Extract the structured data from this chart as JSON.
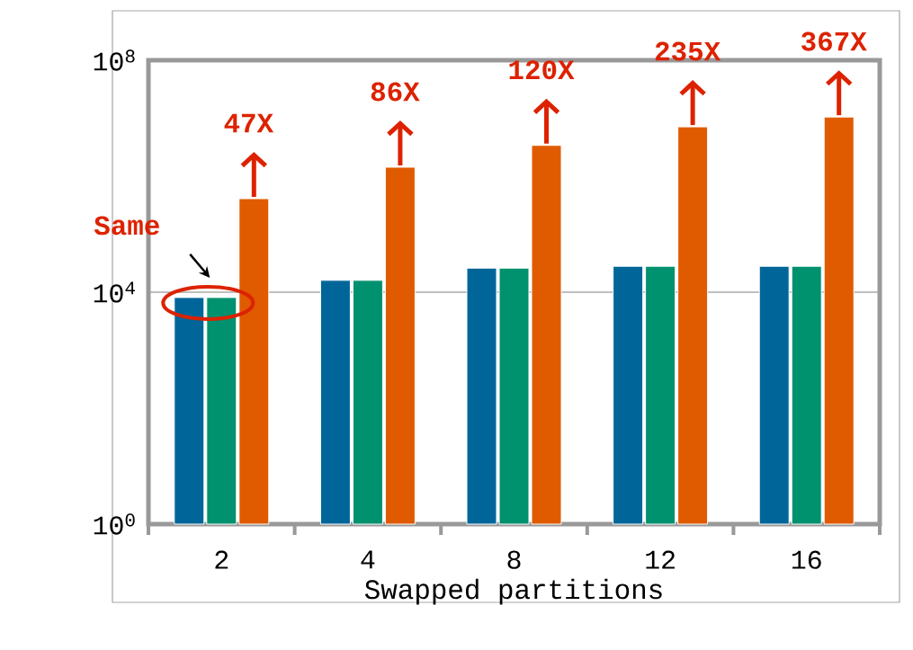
{
  "chart_data": {
    "type": "bar",
    "xlabel": "Swapped partitions",
    "categories": [
      "2",
      "4",
      "8",
      "12",
      "16"
    ],
    "series": [
      {
        "color": "#006699",
        "values": [
          8100,
          16000,
          26000,
          28000,
          28000
        ]
      },
      {
        "color": "#00916e",
        "values": [
          8100,
          16000,
          26000,
          28000,
          28000
        ]
      },
      {
        "color": "#e05a00",
        "values": [
          410000,
          1430000,
          3400000,
          7100000,
          10500000
        ]
      }
    ],
    "log": "y",
    "ylim": [
      1,
      100000000
    ],
    "yticks": [
      {
        "value": 1,
        "label": "10$^{0}$"
      },
      {
        "value": 10000,
        "label": "10$^{4}$"
      },
      {
        "value": 100000000,
        "label": "10$^{8}$"
      }
    ],
    "grid": "y",
    "annotations": [
      "Same",
      {
        "text": "47X",
        "y": 410000
      },
      {
        "text": "86X",
        "y": 1430000
      },
      {
        "text": "120X",
        "y": 3400000
      },
      {
        "text": "235X",
        "y": 7100000
      },
      {
        "text": "367X",
        "y": 10500000
      }
    ]
  }
}
